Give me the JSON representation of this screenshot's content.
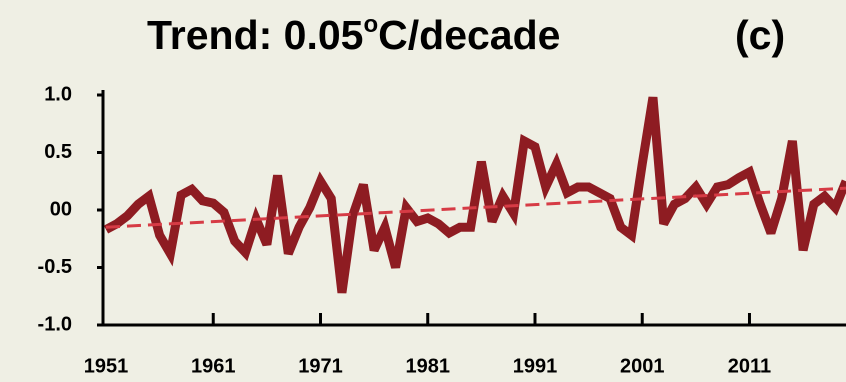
{
  "chart_data": {
    "type": "line",
    "title": [
      "Trend: 0.05",
      "o",
      "C/decade"
    ],
    "panel_label": "(c)",
    "x": [
      1951,
      1952,
      1953,
      1954,
      1955,
      1956,
      1957,
      1958,
      1959,
      1960,
      1961,
      1962,
      1963,
      1964,
      1965,
      1966,
      1967,
      1968,
      1969,
      1970,
      1971,
      1972,
      1973,
      1974,
      1975,
      1976,
      1977,
      1978,
      1979,
      1980,
      1981,
      1982,
      1983,
      1984,
      1985,
      1986,
      1987,
      1988,
      1989,
      1990,
      1991,
      1992,
      1993,
      1994,
      1995,
      1996,
      1997,
      1998,
      1999,
      2000,
      2001,
      2002,
      2003,
      2004,
      2005,
      2006,
      2007,
      2008,
      2009,
      2010,
      2011,
      2012,
      2013,
      2014,
      2015,
      2016,
      2017,
      2018,
      2019,
      2020
    ],
    "series": [
      {
        "color": "#8e1c22",
        "values": [
          -0.17,
          -0.12,
          -0.05,
          0.05,
          0.12,
          -0.22,
          -0.38,
          0.13,
          0.18,
          0.08,
          0.06,
          -0.02,
          -0.27,
          -0.37,
          -0.08,
          -0.3,
          0.3,
          -0.38,
          -0.15,
          0.02,
          0.25,
          0.1,
          -0.72,
          -0.05,
          0.22,
          -0.35,
          -0.15,
          -0.5,
          0.02,
          -0.1,
          -0.07,
          -0.12,
          -0.2,
          -0.15,
          -0.15,
          0.42,
          -0.1,
          0.12,
          -0.03,
          0.6,
          0.55,
          0.2,
          0.4,
          0.15,
          0.2,
          0.2,
          0.15,
          0.1,
          -0.15,
          -0.22,
          0.4,
          0.98,
          -0.12,
          0.05,
          0.1,
          0.2,
          0.05,
          0.2,
          0.22,
          0.28,
          0.33,
          0.05,
          -0.2,
          0.1,
          0.6,
          -0.35,
          0.05,
          0.12,
          0.02,
          0.25
        ]
      }
    ],
    "trend": {
      "x": [
        1951,
        2020
      ],
      "values": [
        -0.15,
        0.19
      ],
      "color": "#d63b45"
    },
    "xlim": [
      1951,
      2020
    ],
    "xticks": [
      1951,
      1961,
      1971,
      1981,
      1991,
      2001,
      2011
    ],
    "ylim": [
      -1,
      1
    ],
    "yticks": [
      {
        "value": -1,
        "label": "-1.0"
      },
      {
        "value": -0.5,
        "label": "-0.5"
      },
      {
        "value": 0,
        "label": "00"
      },
      0.5,
      {
        "value": 1,
        "label": "1.0"
      }
    ],
    "grid": false
  }
}
